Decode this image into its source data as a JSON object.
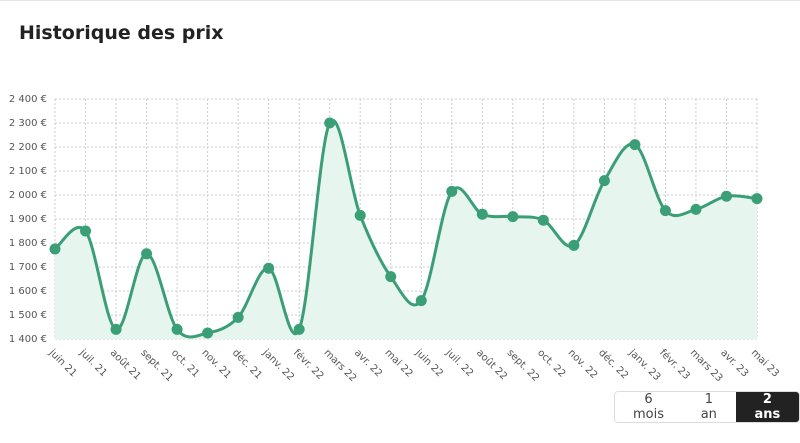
{
  "chart_data": {
    "type": "line",
    "title": "Historique des prix",
    "categories": [
      "juin 21",
      "juil. 21",
      "août 21",
      "sept. 21",
      "oct. 21",
      "nov. 21",
      "déc. 21",
      "janv. 22",
      "févr. 22",
      "mars 22",
      "avr. 22",
      "mai 22",
      "juin 22",
      "juil. 22",
      "août 22",
      "sept. 22",
      "oct. 22",
      "nov. 22",
      "déc. 22",
      "janv. 23",
      "févr. 23",
      "mars 23",
      "avr. 23",
      "mai 23"
    ],
    "values": [
      1775,
      1850,
      1440,
      1755,
      1440,
      1425,
      1490,
      1695,
      1440,
      2300,
      1915,
      1660,
      1560,
      2015,
      1920,
      1910,
      1895,
      1790,
      2060,
      2210,
      1935,
      1940,
      1995,
      1985
    ],
    "color": "#3a9e77",
    "area_color": "#e6f5ee",
    "ylim": [
      1400,
      2400
    ],
    "yticks": [
      {
        "value": 1400,
        "label": "1 400 €"
      },
      {
        "value": 1500,
        "label": "1 500 €"
      },
      {
        "value": 1600,
        "label": "1 600 €"
      },
      {
        "value": 1700,
        "label": "1 700 €"
      },
      {
        "value": 1800,
        "label": "1 800 €"
      },
      {
        "value": 1900,
        "label": "1 900 €"
      },
      {
        "value": 2000,
        "label": "2 000 €"
      },
      {
        "value": 2100,
        "label": "2 100 €"
      },
      {
        "value": 2200,
        "label": "2 200 €"
      },
      {
        "value": 2300,
        "label": "2 300 €"
      },
      {
        "value": 2400,
        "label": "2 400 €"
      }
    ],
    "grid": true
  },
  "range_buttons": [
    "6 mois",
    "1 an",
    "2 ans"
  ],
  "active_range": 2
}
